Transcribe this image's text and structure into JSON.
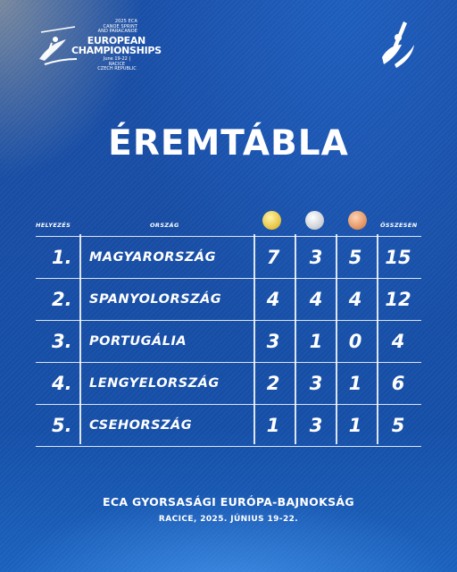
{
  "header": {
    "logo_top_lines": [
      "2025 ECA",
      "CANOE SPRINT",
      "AND PARACANOE"
    ],
    "logo_main_lines": [
      "EUROPEAN",
      "CHAMPIONSHIPS"
    ],
    "logo_foot_lines": [
      "June 19-22 | RACICE",
      "CZECH REPUBLIC"
    ],
    "logo_icon": "kayaker-icon",
    "brand_icon": "paddle-mark-icon"
  },
  "title": "ÉREMTÁBLA",
  "table": {
    "headers": {
      "rank": "HELYEZÉS",
      "country": "ORSZÁG",
      "total": "ÖSSZESEN"
    },
    "medal_colors": {
      "gold": "#e9c94b",
      "silver": "#d0d4da",
      "bronze": "#e49867"
    },
    "rows": [
      {
        "rank": "1.",
        "country": "MAGYARORSZÁG",
        "gold": "7",
        "silver": "3",
        "bronze": "5",
        "total": "15"
      },
      {
        "rank": "2.",
        "country": "SPANYOLORSZÁG",
        "gold": "4",
        "silver": "4",
        "bronze": "4",
        "total": "12"
      },
      {
        "rank": "3.",
        "country": "PORTUGÁLIA",
        "gold": "3",
        "silver": "1",
        "bronze": "0",
        "total": "4"
      },
      {
        "rank": "4.",
        "country": "LENGYELORSZÁG",
        "gold": "2",
        "silver": "3",
        "bronze": "1",
        "total": "6"
      },
      {
        "rank": "5.",
        "country": "CSEHORSZÁG",
        "gold": "1",
        "silver": "3",
        "bronze": "1",
        "total": "5"
      }
    ]
  },
  "footer": {
    "title": "ECA GYORSASÁGI EURÓPA-BAJNOKSÁG",
    "subtitle": "RACICE, 2025. JÚNIUS 19-22."
  },
  "colors": {
    "background": "#184ea6",
    "text": "#ffffff"
  }
}
